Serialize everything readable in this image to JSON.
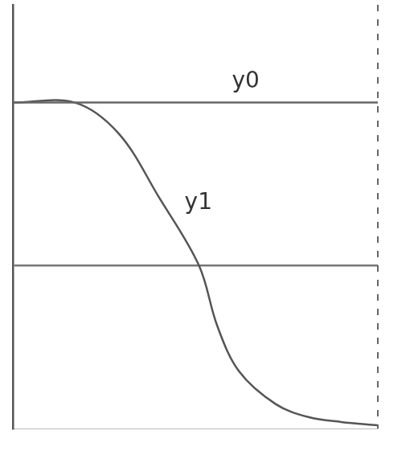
{
  "chart_data": {
    "type": "line",
    "series": [
      {
        "name": "y0",
        "color": "#666666",
        "x": [
          0,
          1
        ],
        "values": [
          1,
          1
        ]
      },
      {
        "name": "y1",
        "color": "#555555",
        "x": [
          0,
          0.17,
          0.29,
          0.4,
          0.51,
          0.56,
          0.62,
          0.72,
          0.81,
          0.9,
          1.0
        ],
        "values": [
          1,
          1,
          0.81,
          0.42,
          0,
          -0.37,
          -0.65,
          -0.85,
          -0.93,
          -0.96,
          -0.98
        ]
      }
    ],
    "xlim": [
      0,
      1
    ],
    "xticks": [],
    "ylim": [
      -1,
      1.6
    ],
    "yticks": [
      0
    ],
    "grid": true,
    "tick_labels": false
  }
}
